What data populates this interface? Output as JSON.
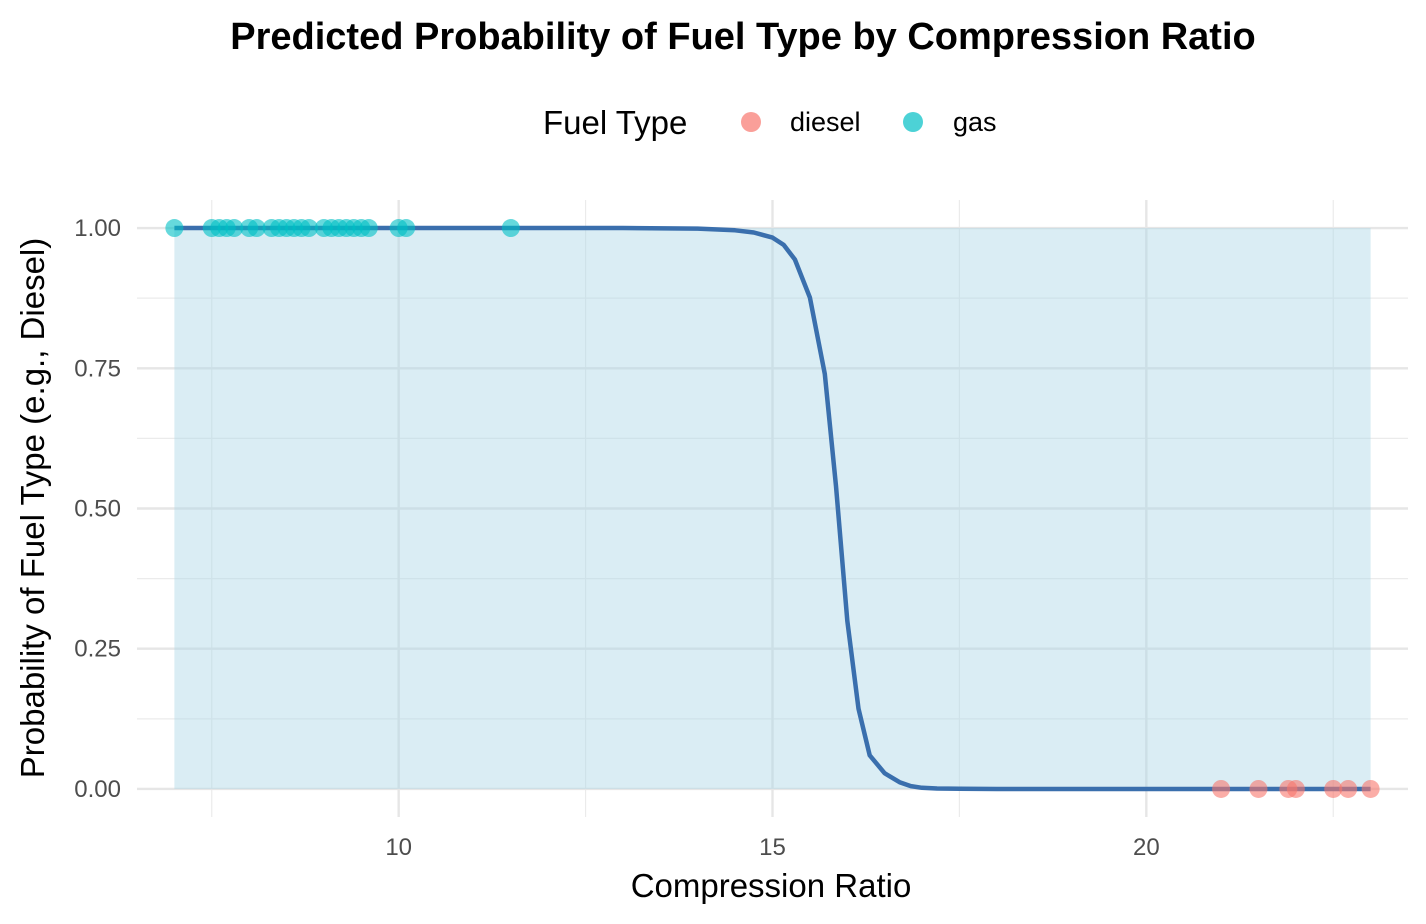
{
  "chart_data": {
    "type": "scatter",
    "title": "Predicted Probability of Fuel Type by Compression Ratio",
    "xlabel": "Compression Ratio",
    "ylabel": "Probability of Fuel Type (e.g., Diesel)",
    "xlim": [
      6.5,
      23.5
    ],
    "ylim": [
      -0.05,
      1.05
    ],
    "x_ticks": [
      10,
      15,
      20
    ],
    "y_ticks": [
      0.0,
      0.25,
      0.5,
      0.75,
      1.0
    ],
    "y_tick_labels": [
      "0.00",
      "0.25",
      "0.50",
      "0.75",
      "1.00"
    ],
    "grid": true,
    "legend": {
      "title": "Fuel Type",
      "placement": "top",
      "entries": [
        {
          "name": "diesel",
          "color": "#F8766D"
        },
        {
          "name": "gas",
          "color": "#00BFC4"
        }
      ]
    },
    "ribbon": {
      "x_range": [
        7.0,
        23.0
      ],
      "y_range": [
        0.0,
        1.0
      ],
      "color": "#add8e6"
    },
    "fit_line": {
      "color": "#3a6fad",
      "x": [
        7.0,
        8.0,
        9.0,
        10.0,
        11.0,
        12.0,
        13.0,
        14.0,
        14.5,
        14.75,
        15.0,
        15.15,
        15.3,
        15.5,
        15.7,
        15.85,
        16.0,
        16.15,
        16.3,
        16.5,
        16.7,
        16.85,
        17.0,
        17.2,
        17.5,
        18.0,
        19.0,
        20.0,
        21.0,
        22.0,
        23.0
      ],
      "y": [
        1.0,
        1.0,
        1.0,
        1.0,
        1.0,
        1.0,
        1.0,
        0.999,
        0.996,
        0.992,
        0.983,
        0.97,
        0.944,
        0.876,
        0.74,
        0.54,
        0.3,
        0.143,
        0.06,
        0.028,
        0.012,
        0.005,
        0.002,
        0.0008,
        0.0002,
        0.0,
        0.0,
        0.0,
        0.0,
        0.0,
        0.0
      ]
    },
    "series": [
      {
        "name": "gas",
        "color": "#00BFC4",
        "x": [
          7.0,
          7.5,
          7.6,
          7.7,
          7.8,
          8.0,
          8.1,
          8.3,
          8.4,
          8.5,
          8.6,
          8.7,
          8.8,
          9.0,
          9.1,
          9.2,
          9.3,
          9.4,
          9.5,
          9.6,
          10.0,
          10.1,
          11.5
        ],
        "y": [
          1,
          1,
          1,
          1,
          1,
          1,
          1,
          1,
          1,
          1,
          1,
          1,
          1,
          1,
          1,
          1,
          1,
          1,
          1,
          1,
          1,
          1,
          1
        ]
      },
      {
        "name": "diesel",
        "color": "#F8766D",
        "x": [
          21.0,
          21.5,
          21.9,
          22.0,
          22.5,
          22.7,
          23.0
        ],
        "y": [
          0,
          0,
          0,
          0,
          0,
          0,
          0
        ]
      }
    ]
  }
}
